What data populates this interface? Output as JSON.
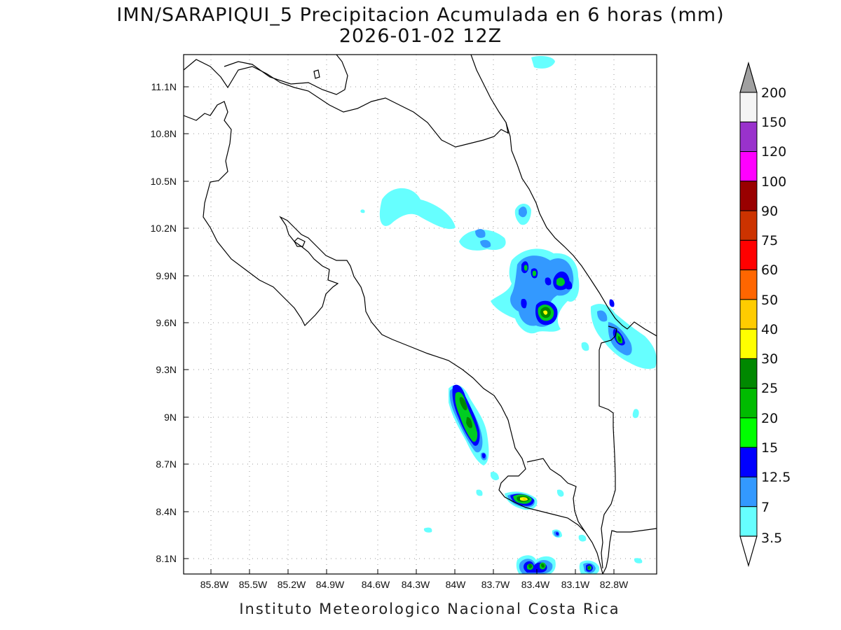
{
  "header": {
    "title": "IMN/SARAPIQUI_5 Precipitacion Acumulada en 6 horas (mm)",
    "subtitle": "2026-01-02 12Z"
  },
  "map": {
    "lon_labels": [
      "85.8W",
      "85.5W",
      "85.2W",
      "84.9W",
      "84.6W",
      "84.3W",
      "84W",
      "83.7W",
      "83.4W",
      "83.1W",
      "82.8W"
    ],
    "lat_labels": [
      "11.1N",
      "10.8N",
      "10.5N",
      "10.2N",
      "9.9N",
      "9.6N",
      "9.3N",
      "9N",
      "8.7N",
      "8.4N",
      "8.1N"
    ],
    "grid": true
  },
  "colorbar": {
    "labels": [
      "200",
      "150",
      "120",
      "100",
      "90",
      "75",
      "60",
      "50",
      "40",
      "30",
      "25",
      "20",
      "15",
      "12.5",
      "7",
      "3.5"
    ],
    "colors": [
      "#a0a0a0",
      "#f5f5f5",
      "#9932cc",
      "#ff00ff",
      "#990000",
      "#cc3300",
      "#ff0000",
      "#ff6600",
      "#ffcc00",
      "#ffff00",
      "#008800",
      "#00bb00",
      "#00ff00",
      "#0000ff",
      "#3399ff",
      "#66ffff",
      "#ffffff"
    ]
  },
  "footer": "Instituto Meteorologico Nacional Costa Rica"
}
